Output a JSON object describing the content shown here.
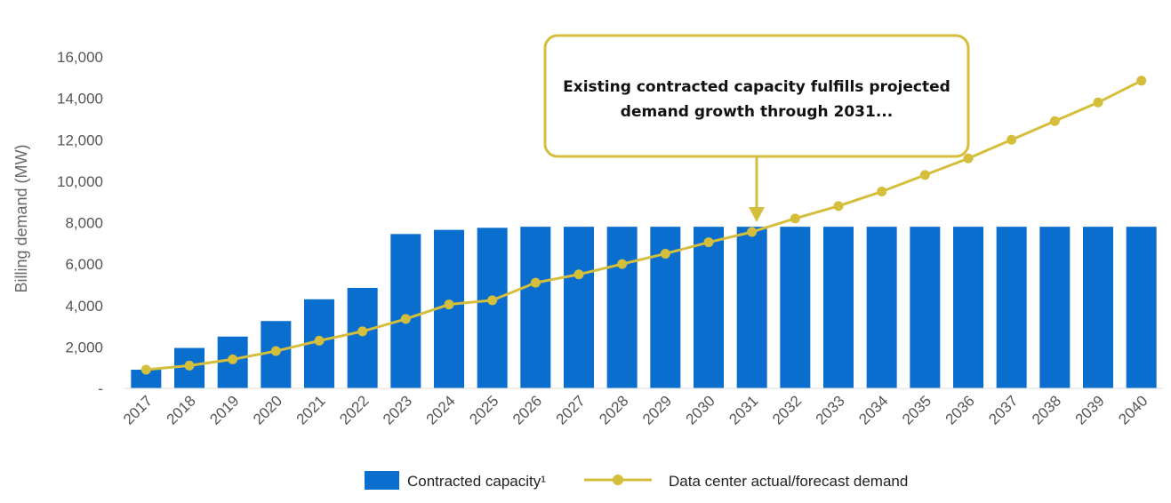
{
  "chart_data": {
    "type": "bar",
    "title": "",
    "xlabel": "",
    "ylabel": "Billing demand (MW)",
    "ylim": [
      0,
      16000
    ],
    "yticks": [
      0,
      2000,
      4000,
      6000,
      8000,
      10000,
      12000,
      14000,
      16000
    ],
    "ytick_labels": [
      "-",
      "2,000",
      "4,000",
      "6,000",
      "8,000",
      "10,000",
      "12,000",
      "14,000",
      "16,000"
    ],
    "grid": false,
    "categories": [
      "2017",
      "2018",
      "2019",
      "2020",
      "2021",
      "2022",
      "2023",
      "2024",
      "2025",
      "2026",
      "2027",
      "2028",
      "2029",
      "2030",
      "2031",
      "2032",
      "2033",
      "2034",
      "2035",
      "2036",
      "2037",
      "2038",
      "2039",
      "2040"
    ],
    "series": [
      {
        "name": "Contracted capacity¹",
        "type": "bar",
        "color": "#0A6ECF",
        "values": [
          900,
          1950,
          2500,
          3250,
          4300,
          4850,
          7450,
          7650,
          7750,
          7800,
          7800,
          7800,
          7800,
          7800,
          7800,
          7800,
          7800,
          7800,
          7800,
          7800,
          7800,
          7800,
          7800,
          7800
        ]
      },
      {
        "name": "Data center actual/forecast demand",
        "type": "line",
        "color": "#D4BE3C",
        "values": [
          900,
          1100,
          1400,
          1800,
          2300,
          2750,
          3350,
          4050,
          4250,
          5100,
          5500,
          6000,
          6500,
          7050,
          7550,
          8200,
          8800,
          9500,
          10300,
          11100,
          12000,
          12900,
          13800,
          14850
        ]
      }
    ],
    "legend_position": "bottom-center",
    "annotations": [
      {
        "text_lines": [
          "Existing contracted capacity fulfills projected",
          "demand growth through 2031..."
        ],
        "points_to": "2031"
      }
    ]
  }
}
